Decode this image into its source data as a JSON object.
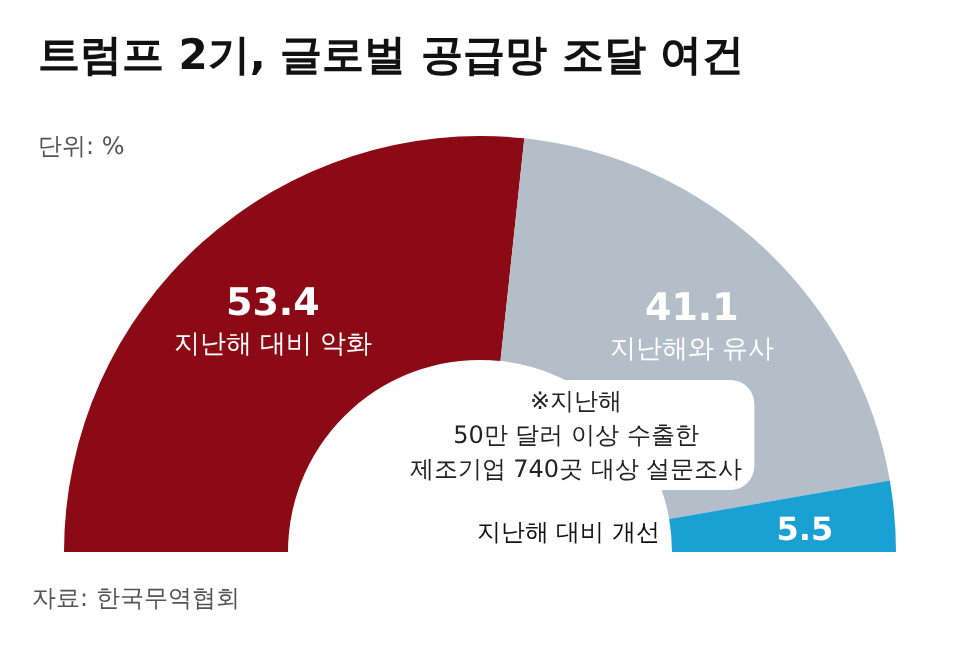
{
  "chart_data": {
    "type": "donut",
    "title": "트럼프 2기, 글로벌 공급망 조달 여건",
    "subtitle": "단위: %",
    "categories": [
      "지난해 대비 악화",
      "지난해와 유사",
      "지난해 대비 개선"
    ],
    "values": [
      53.4,
      41.1,
      5.5
    ],
    "colors": [
      "#8c0a16",
      "#b4bec8",
      "#1ba0d4"
    ],
    "data_labels": true,
    "annotations": [
      "※지난해\n50만 달러 이상 수출한\n제조기업 740곳 대상 설문조사",
      "자료: 한국무역협회"
    ]
  }
}
